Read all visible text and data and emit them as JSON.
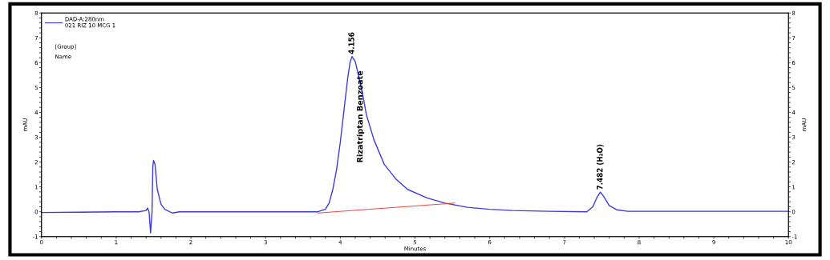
{
  "chart_data": {
    "type": "line",
    "xlabel": "Minutes",
    "ylabel": "mAU",
    "y2label": "mAU",
    "xlim": [
      0,
      10
    ],
    "xticks": [
      0,
      1,
      2,
      3,
      4,
      5,
      6,
      7,
      8,
      9,
      10
    ],
    "ylim": [
      -1,
      8
    ],
    "yticks": [
      -1,
      0,
      1,
      2,
      3,
      4,
      5,
      6,
      7,
      8
    ],
    "y2lim": [
      -1,
      8
    ],
    "y2ticks": [
      -1,
      0,
      1,
      2,
      3,
      4,
      5,
      6,
      7,
      8
    ],
    "legend": "top left",
    "grid": false,
    "marker": "none",
    "line_style": "solid",
    "series": [
      {
        "name": "DAD-A:280nm\n021 RIZ 10 MCG 1",
        "color": "#3a3ae0",
        "x": [
          0,
          0.5,
          1.0,
          1.3,
          1.4,
          1.42,
          1.44,
          1.46,
          1.48,
          1.49,
          1.5,
          1.52,
          1.55,
          1.6,
          1.65,
          1.75,
          1.85,
          2.5,
          3.0,
          3.5,
          3.7,
          3.8,
          3.85,
          3.9,
          3.95,
          4.0,
          4.05,
          4.1,
          4.13,
          4.156,
          4.2,
          4.25,
          4.3,
          4.35,
          4.45,
          4.59,
          4.75,
          4.9,
          5.16,
          5.4,
          5.7,
          6.0,
          6.3,
          6.8,
          7.3,
          7.38,
          7.44,
          7.482,
          7.53,
          7.6,
          7.7,
          7.85,
          8.5,
          9.0,
          9.5,
          10
        ],
        "values": [
          -0.03,
          -0.02,
          0.0,
          0.0,
          0.05,
          0.15,
          0.0,
          -0.85,
          0.0,
          1.8,
          2.07,
          1.9,
          0.9,
          0.3,
          0.1,
          -0.05,
          0.0,
          0.0,
          0.0,
          0.0,
          0.0,
          0.1,
          0.35,
          0.9,
          1.7,
          2.8,
          4.1,
          5.4,
          6.0,
          6.25,
          6.05,
          5.4,
          4.7,
          3.9,
          2.9,
          1.9,
          1.3,
          0.9,
          0.56,
          0.35,
          0.18,
          0.1,
          0.05,
          0.02,
          0.0,
          0.2,
          0.6,
          0.79,
          0.6,
          0.25,
          0.08,
          0.02,
          0.02,
          0.02,
          0.02,
          0.02
        ]
      },
      {
        "type": "line",
        "color": "#f04040",
        "x": [
          3.7,
          5.53
        ],
        "values": [
          -0.05,
          0.35
        ]
      }
    ],
    "annotations": [
      {
        "text": "4.156",
        "x": 4.156,
        "y": 6.25
      },
      "Rizatriptan Benzoate",
      {
        "text": "7.482 (H₂O)",
        "x": 7.482,
        "y": 0.79
      },
      "[Group]",
      "Name"
    ]
  }
}
